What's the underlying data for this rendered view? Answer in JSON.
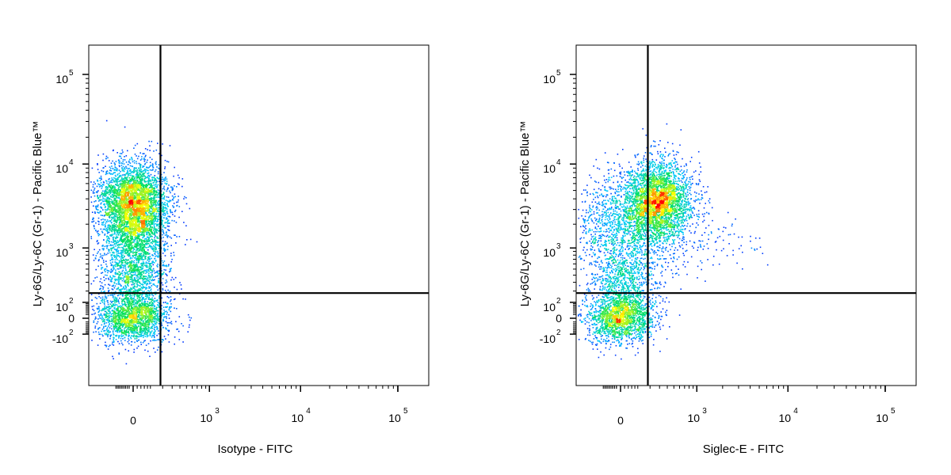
{
  "chart_data": [
    {
      "type": "scatter",
      "title": "",
      "xlabel": "Isotype - FITC",
      "ylabel": "Ly-6G/Ly-6C (Gr-1) - Pacific Blue™",
      "x_scale": "biexponential",
      "y_scale": "biexponential",
      "x_ticks": [
        {
          "label": "0"
        },
        {
          "label": "10",
          "exp": "3"
        },
        {
          "label": "10",
          "exp": "4"
        },
        {
          "label": "10",
          "exp": "5"
        }
      ],
      "y_ticks": [
        {
          "label": "10",
          "exp": "5"
        },
        {
          "label": "10",
          "exp": "4"
        },
        {
          "label": "10",
          "exp": "3"
        },
        {
          "label": "10",
          "exp": "2"
        },
        {
          "label": "0"
        },
        {
          "label": "-10",
          "exp": "2"
        }
      ],
      "gate": {
        "x": 180,
        "y": 180
      },
      "colormap": [
        "#0000ff",
        "#00c8ff",
        "#00e060",
        "#ffff00",
        "#ff0000"
      ],
      "populations": [
        {
          "x": 0,
          "y": 3900,
          "count": 2800
        },
        {
          "x": 0,
          "y": 1700,
          "count": 1900
        },
        {
          "x": 0,
          "y": 300,
          "count": 1100
        },
        {
          "x": 0,
          "y": 0,
          "count": 1600
        }
      ]
    },
    {
      "type": "scatter",
      "title": "",
      "xlabel": "Siglec-E - FITC",
      "ylabel": "Ly-6G/Ly-6C (Gr-1) - Pacific Blue™",
      "x_scale": "biexponential",
      "y_scale": "biexponential",
      "x_ticks": [
        {
          "label": "0"
        },
        {
          "label": "10",
          "exp": "3"
        },
        {
          "label": "10",
          "exp": "4"
        },
        {
          "label": "10",
          "exp": "5"
        }
      ],
      "y_ticks": [
        {
          "label": "10",
          "exp": "5"
        },
        {
          "label": "10",
          "exp": "4"
        },
        {
          "label": "10",
          "exp": "3"
        },
        {
          "label": "10",
          "exp": "2"
        },
        {
          "label": "0"
        },
        {
          "label": "-10",
          "exp": "2"
        }
      ],
      "gate": {
        "x": 180,
        "y": 180
      },
      "colormap": [
        "#0000ff",
        "#00c8ff",
        "#00e060",
        "#ffff00",
        "#ff0000"
      ],
      "populations": [
        {
          "x": 300,
          "y": 4000,
          "count": 2600
        },
        {
          "x": 60,
          "y": 2200,
          "count": 1800
        },
        {
          "x": 10,
          "y": 300,
          "count": 1000
        },
        {
          "x": 0,
          "y": 0,
          "count": 1500
        },
        {
          "x": 2000,
          "y": 1200,
          "count": 60
        }
      ]
    }
  ]
}
